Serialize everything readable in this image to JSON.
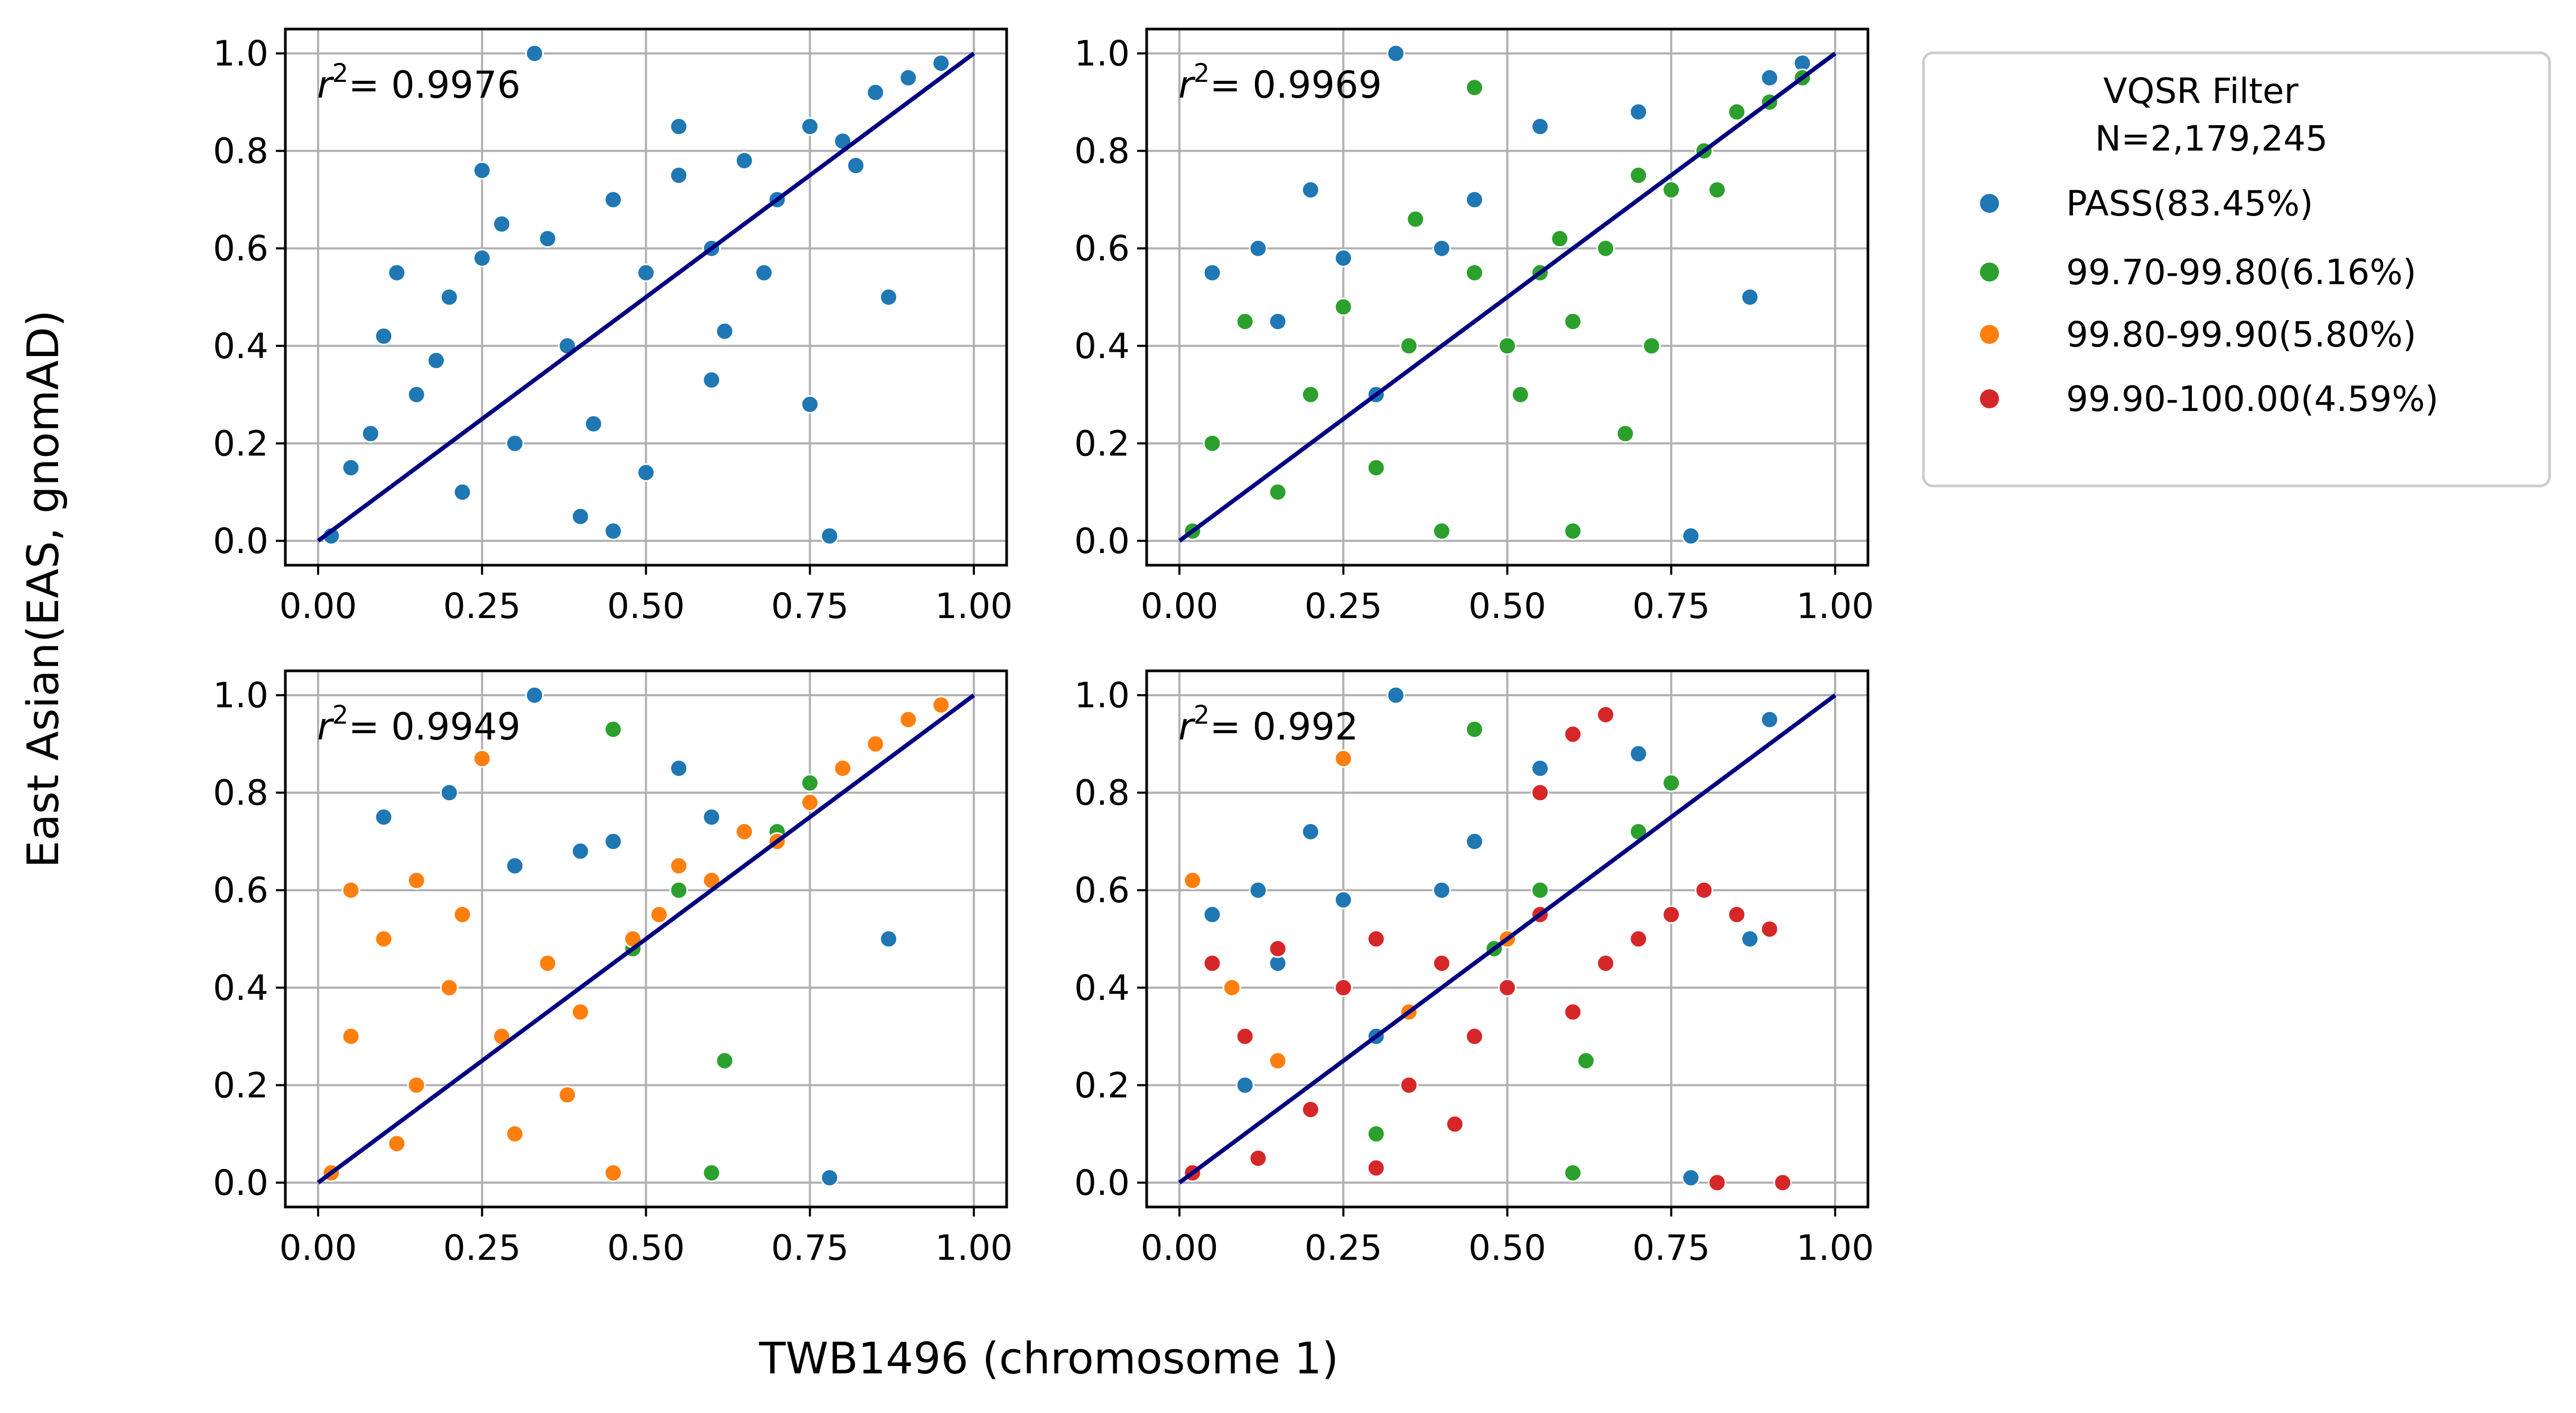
{
  "figure": {
    "ylabel": "East Asian(EAS, gnomAD)",
    "xlabel": "TWB1496 (chromosome 1)"
  },
  "legend": {
    "title": "VQSR Filter",
    "subtitle": "N=2,179,245",
    "items": [
      {
        "label": "PASS(83.45%)",
        "color": "#1f77b4"
      },
      {
        "label": "99.70-99.80(6.16%)",
        "color": "#2ca02c"
      },
      {
        "label": "99.80-99.90(5.80%)",
        "color": "#ff7f0e"
      },
      {
        "label": "99.90-100.00(4.59%)",
        "color": "#d62728"
      }
    ]
  },
  "chart_data": [
    {
      "type": "scatter",
      "r2_symbol": "r",
      "r2_sup": "2",
      "r2_value": "= 0.9976",
      "xlim": [
        -0.05,
        1.05
      ],
      "ylim": [
        -0.05,
        1.05
      ],
      "xticks": [
        "0.00",
        "0.25",
        "0.50",
        "0.75",
        "1.00"
      ],
      "yticks": [
        "0.0",
        "0.2",
        "0.4",
        "0.6",
        "0.8",
        "1.0"
      ],
      "grid": true,
      "fit_line": {
        "color": "#000080",
        "from": [
          0,
          0
        ],
        "to": [
          1,
          1
        ]
      },
      "series": [
        {
          "color": "#1f77b4",
          "points": [
            [
              0.02,
              0.01
            ],
            [
              0.05,
              0.15
            ],
            [
              0.1,
              0.42
            ],
            [
              0.12,
              0.55
            ],
            [
              0.15,
              0.3
            ],
            [
              0.2,
              0.5
            ],
            [
              0.22,
              0.1
            ],
            [
              0.25,
              0.58
            ],
            [
              0.28,
              0.65
            ],
            [
              0.3,
              0.2
            ],
            [
              0.35,
              0.62
            ],
            [
              0.38,
              0.4
            ],
            [
              0.4,
              0.05
            ],
            [
              0.45,
              0.7
            ],
            [
              0.5,
              0.55
            ],
            [
              0.55,
              0.75
            ],
            [
              0.6,
              0.6
            ],
            [
              0.65,
              0.78
            ],
            [
              0.7,
              0.7
            ],
            [
              0.75,
              0.85
            ],
            [
              0.8,
              0.82
            ],
            [
              0.85,
              0.92
            ],
            [
              0.9,
              0.95
            ],
            [
              0.95,
              0.98
            ],
            [
              0.33,
              1.0
            ],
            [
              0.25,
              0.76
            ],
            [
              0.55,
              0.85
            ],
            [
              0.75,
              0.28
            ],
            [
              0.78,
              0.01
            ],
            [
              0.87,
              0.5
            ],
            [
              0.9,
              0.95
            ],
            [
              0.45,
              0.02
            ],
            [
              0.6,
              0.33
            ],
            [
              0.5,
              0.14
            ],
            [
              0.08,
              0.22
            ],
            [
              0.18,
              0.37
            ],
            [
              0.42,
              0.24
            ],
            [
              0.62,
              0.43
            ],
            [
              0.68,
              0.55
            ],
            [
              0.82,
              0.77
            ]
          ]
        }
      ]
    },
    {
      "type": "scatter",
      "r2_symbol": "r",
      "r2_sup": "2",
      "r2_value": "= 0.9969",
      "xlim": [
        -0.05,
        1.05
      ],
      "ylim": [
        -0.05,
        1.05
      ],
      "xticks": [
        "0.00",
        "0.25",
        "0.50",
        "0.75",
        "1.00"
      ],
      "yticks": [
        "0.0",
        "0.2",
        "0.4",
        "0.6",
        "0.8",
        "1.0"
      ],
      "grid": true,
      "fit_line": {
        "color": "#000080",
        "from": [
          0,
          0
        ],
        "to": [
          1,
          1
        ]
      },
      "series": [
        {
          "color": "#1f77b4",
          "points": [
            [
              0.05,
              0.55
            ],
            [
              0.12,
              0.6
            ],
            [
              0.2,
              0.72
            ],
            [
              0.25,
              0.58
            ],
            [
              0.33,
              1.0
            ],
            [
              0.45,
              0.7
            ],
            [
              0.55,
              0.85
            ],
            [
              0.7,
              0.88
            ],
            [
              0.78,
              0.01
            ],
            [
              0.87,
              0.5
            ],
            [
              0.9,
              0.95
            ],
            [
              0.95,
              0.98
            ],
            [
              0.3,
              0.3
            ],
            [
              0.15,
              0.45
            ],
            [
              0.4,
              0.6
            ]
          ]
        },
        {
          "color": "#2ca02c",
          "points": [
            [
              0.02,
              0.02
            ],
            [
              0.05,
              0.2
            ],
            [
              0.1,
              0.45
            ],
            [
              0.15,
              0.1
            ],
            [
              0.2,
              0.3
            ],
            [
              0.25,
              0.48
            ],
            [
              0.3,
              0.15
            ],
            [
              0.35,
              0.4
            ],
            [
              0.4,
              0.02
            ],
            [
              0.45,
              0.55
            ],
            [
              0.5,
              0.4
            ],
            [
              0.55,
              0.55
            ],
            [
              0.6,
              0.45
            ],
            [
              0.65,
              0.6
            ],
            [
              0.7,
              0.75
            ],
            [
              0.75,
              0.72
            ],
            [
              0.8,
              0.8
            ],
            [
              0.85,
              0.88
            ],
            [
              0.9,
              0.9
            ],
            [
              0.95,
              0.95
            ],
            [
              0.45,
              0.93
            ],
            [
              0.6,
              0.02
            ],
            [
              0.68,
              0.22
            ],
            [
              0.72,
              0.4
            ],
            [
              0.52,
              0.3
            ],
            [
              0.36,
              0.66
            ],
            [
              0.58,
              0.62
            ],
            [
              0.82,
              0.72
            ]
          ]
        }
      ]
    },
    {
      "type": "scatter",
      "r2_symbol": "r",
      "r2_sup": "2",
      "r2_value": "= 0.9949",
      "xlim": [
        -0.05,
        1.05
      ],
      "ylim": [
        -0.05,
        1.05
      ],
      "xticks": [
        "0.00",
        "0.25",
        "0.50",
        "0.75",
        "1.00"
      ],
      "yticks": [
        "0.0",
        "0.2",
        "0.4",
        "0.6",
        "0.8",
        "1.0"
      ],
      "grid": true,
      "fit_line": {
        "color": "#000080",
        "from": [
          0,
          0
        ],
        "to": [
          1,
          1
        ]
      },
      "series": [
        {
          "color": "#1f77b4",
          "points": [
            [
              0.1,
              0.75
            ],
            [
              0.2,
              0.8
            ],
            [
              0.33,
              1.0
            ],
            [
              0.45,
              0.7
            ],
            [
              0.55,
              0.85
            ],
            [
              0.78,
              0.01
            ],
            [
              0.87,
              0.5
            ],
            [
              0.9,
              0.95
            ],
            [
              0.3,
              0.65
            ],
            [
              0.4,
              0.68
            ],
            [
              0.6,
              0.75
            ]
          ]
        },
        {
          "color": "#2ca02c",
          "points": [
            [
              0.45,
              0.93
            ],
            [
              0.6,
              0.02
            ],
            [
              0.55,
              0.6
            ],
            [
              0.7,
              0.72
            ],
            [
              0.62,
              0.25
            ],
            [
              0.48,
              0.48
            ],
            [
              0.75,
              0.82
            ]
          ]
        },
        {
          "color": "#ff7f0e",
          "points": [
            [
              0.02,
              0.02
            ],
            [
              0.05,
              0.3
            ],
            [
              0.05,
              0.6
            ],
            [
              0.1,
              0.5
            ],
            [
              0.15,
              0.2
            ],
            [
              0.2,
              0.4
            ],
            [
              0.22,
              0.55
            ],
            [
              0.25,
              0.87
            ],
            [
              0.28,
              0.3
            ],
            [
              0.3,
              0.1
            ],
            [
              0.35,
              0.45
            ],
            [
              0.4,
              0.35
            ],
            [
              0.45,
              0.02
            ],
            [
              0.48,
              0.5
            ],
            [
              0.52,
              0.55
            ],
            [
              0.55,
              0.65
            ],
            [
              0.6,
              0.62
            ],
            [
              0.65,
              0.72
            ],
            [
              0.7,
              0.7
            ],
            [
              0.75,
              0.78
            ],
            [
              0.8,
              0.85
            ],
            [
              0.85,
              0.9
            ],
            [
              0.9,
              0.95
            ],
            [
              0.95,
              0.98
            ],
            [
              0.15,
              0.62
            ],
            [
              0.38,
              0.18
            ],
            [
              0.12,
              0.08
            ]
          ]
        }
      ]
    },
    {
      "type": "scatter",
      "r2_symbol": "r",
      "r2_sup": "2",
      "r2_value": "= 0.992",
      "xlim": [
        -0.05,
        1.05
      ],
      "ylim": [
        -0.05,
        1.05
      ],
      "xticks": [
        "0.00",
        "0.25",
        "0.50",
        "0.75",
        "1.00"
      ],
      "yticks": [
        "0.0",
        "0.2",
        "0.4",
        "0.6",
        "0.8",
        "1.0"
      ],
      "grid": true,
      "fit_line": {
        "color": "#000080",
        "from": [
          0,
          0
        ],
        "to": [
          1,
          1
        ]
      },
      "series": [
        {
          "color": "#1f77b4",
          "points": [
            [
              0.05,
              0.55
            ],
            [
              0.12,
              0.6
            ],
            [
              0.2,
              0.72
            ],
            [
              0.25,
              0.58
            ],
            [
              0.33,
              1.0
            ],
            [
              0.45,
              0.7
            ],
            [
              0.55,
              0.85
            ],
            [
              0.7,
              0.88
            ],
            [
              0.78,
              0.01
            ],
            [
              0.87,
              0.5
            ],
            [
              0.9,
              0.95
            ],
            [
              0.3,
              0.3
            ],
            [
              0.15,
              0.45
            ],
            [
              0.4,
              0.6
            ],
            [
              0.1,
              0.2
            ]
          ]
        },
        {
          "color": "#2ca02c",
          "points": [
            [
              0.45,
              0.93
            ],
            [
              0.6,
              0.02
            ],
            [
              0.55,
              0.6
            ],
            [
              0.7,
              0.72
            ],
            [
              0.62,
              0.25
            ],
            [
              0.48,
              0.48
            ],
            [
              0.75,
              0.82
            ],
            [
              0.3,
              0.1
            ]
          ]
        },
        {
          "color": "#ff7f0e",
          "points": [
            [
              0.02,
              0.62
            ],
            [
              0.08,
              0.4
            ],
            [
              0.25,
              0.87
            ],
            [
              0.15,
              0.25
            ],
            [
              0.35,
              0.35
            ],
            [
              0.5,
              0.5
            ]
          ]
        },
        {
          "color": "#d62728",
          "points": [
            [
              0.02,
              0.02
            ],
            [
              0.05,
              0.45
            ],
            [
              0.1,
              0.3
            ],
            [
              0.15,
              0.48
            ],
            [
              0.2,
              0.15
            ],
            [
              0.25,
              0.4
            ],
            [
              0.3,
              0.5
            ],
            [
              0.35,
              0.2
            ],
            [
              0.4,
              0.45
            ],
            [
              0.45,
              0.3
            ],
            [
              0.5,
              0.4
            ],
            [
              0.55,
              0.55
            ],
            [
              0.6,
              0.35
            ],
            [
              0.65,
              0.45
            ],
            [
              0.7,
              0.5
            ],
            [
              0.75,
              0.55
            ],
            [
              0.8,
              0.6
            ],
            [
              0.85,
              0.55
            ],
            [
              0.9,
              0.52
            ],
            [
              0.92,
              0.0
            ],
            [
              0.82,
              0.0
            ],
            [
              0.55,
              0.8
            ],
            [
              0.65,
              0.96
            ],
            [
              0.6,
              0.92
            ],
            [
              0.12,
              0.05
            ],
            [
              0.42,
              0.12
            ],
            [
              0.3,
              0.03
            ]
          ]
        }
      ]
    }
  ]
}
